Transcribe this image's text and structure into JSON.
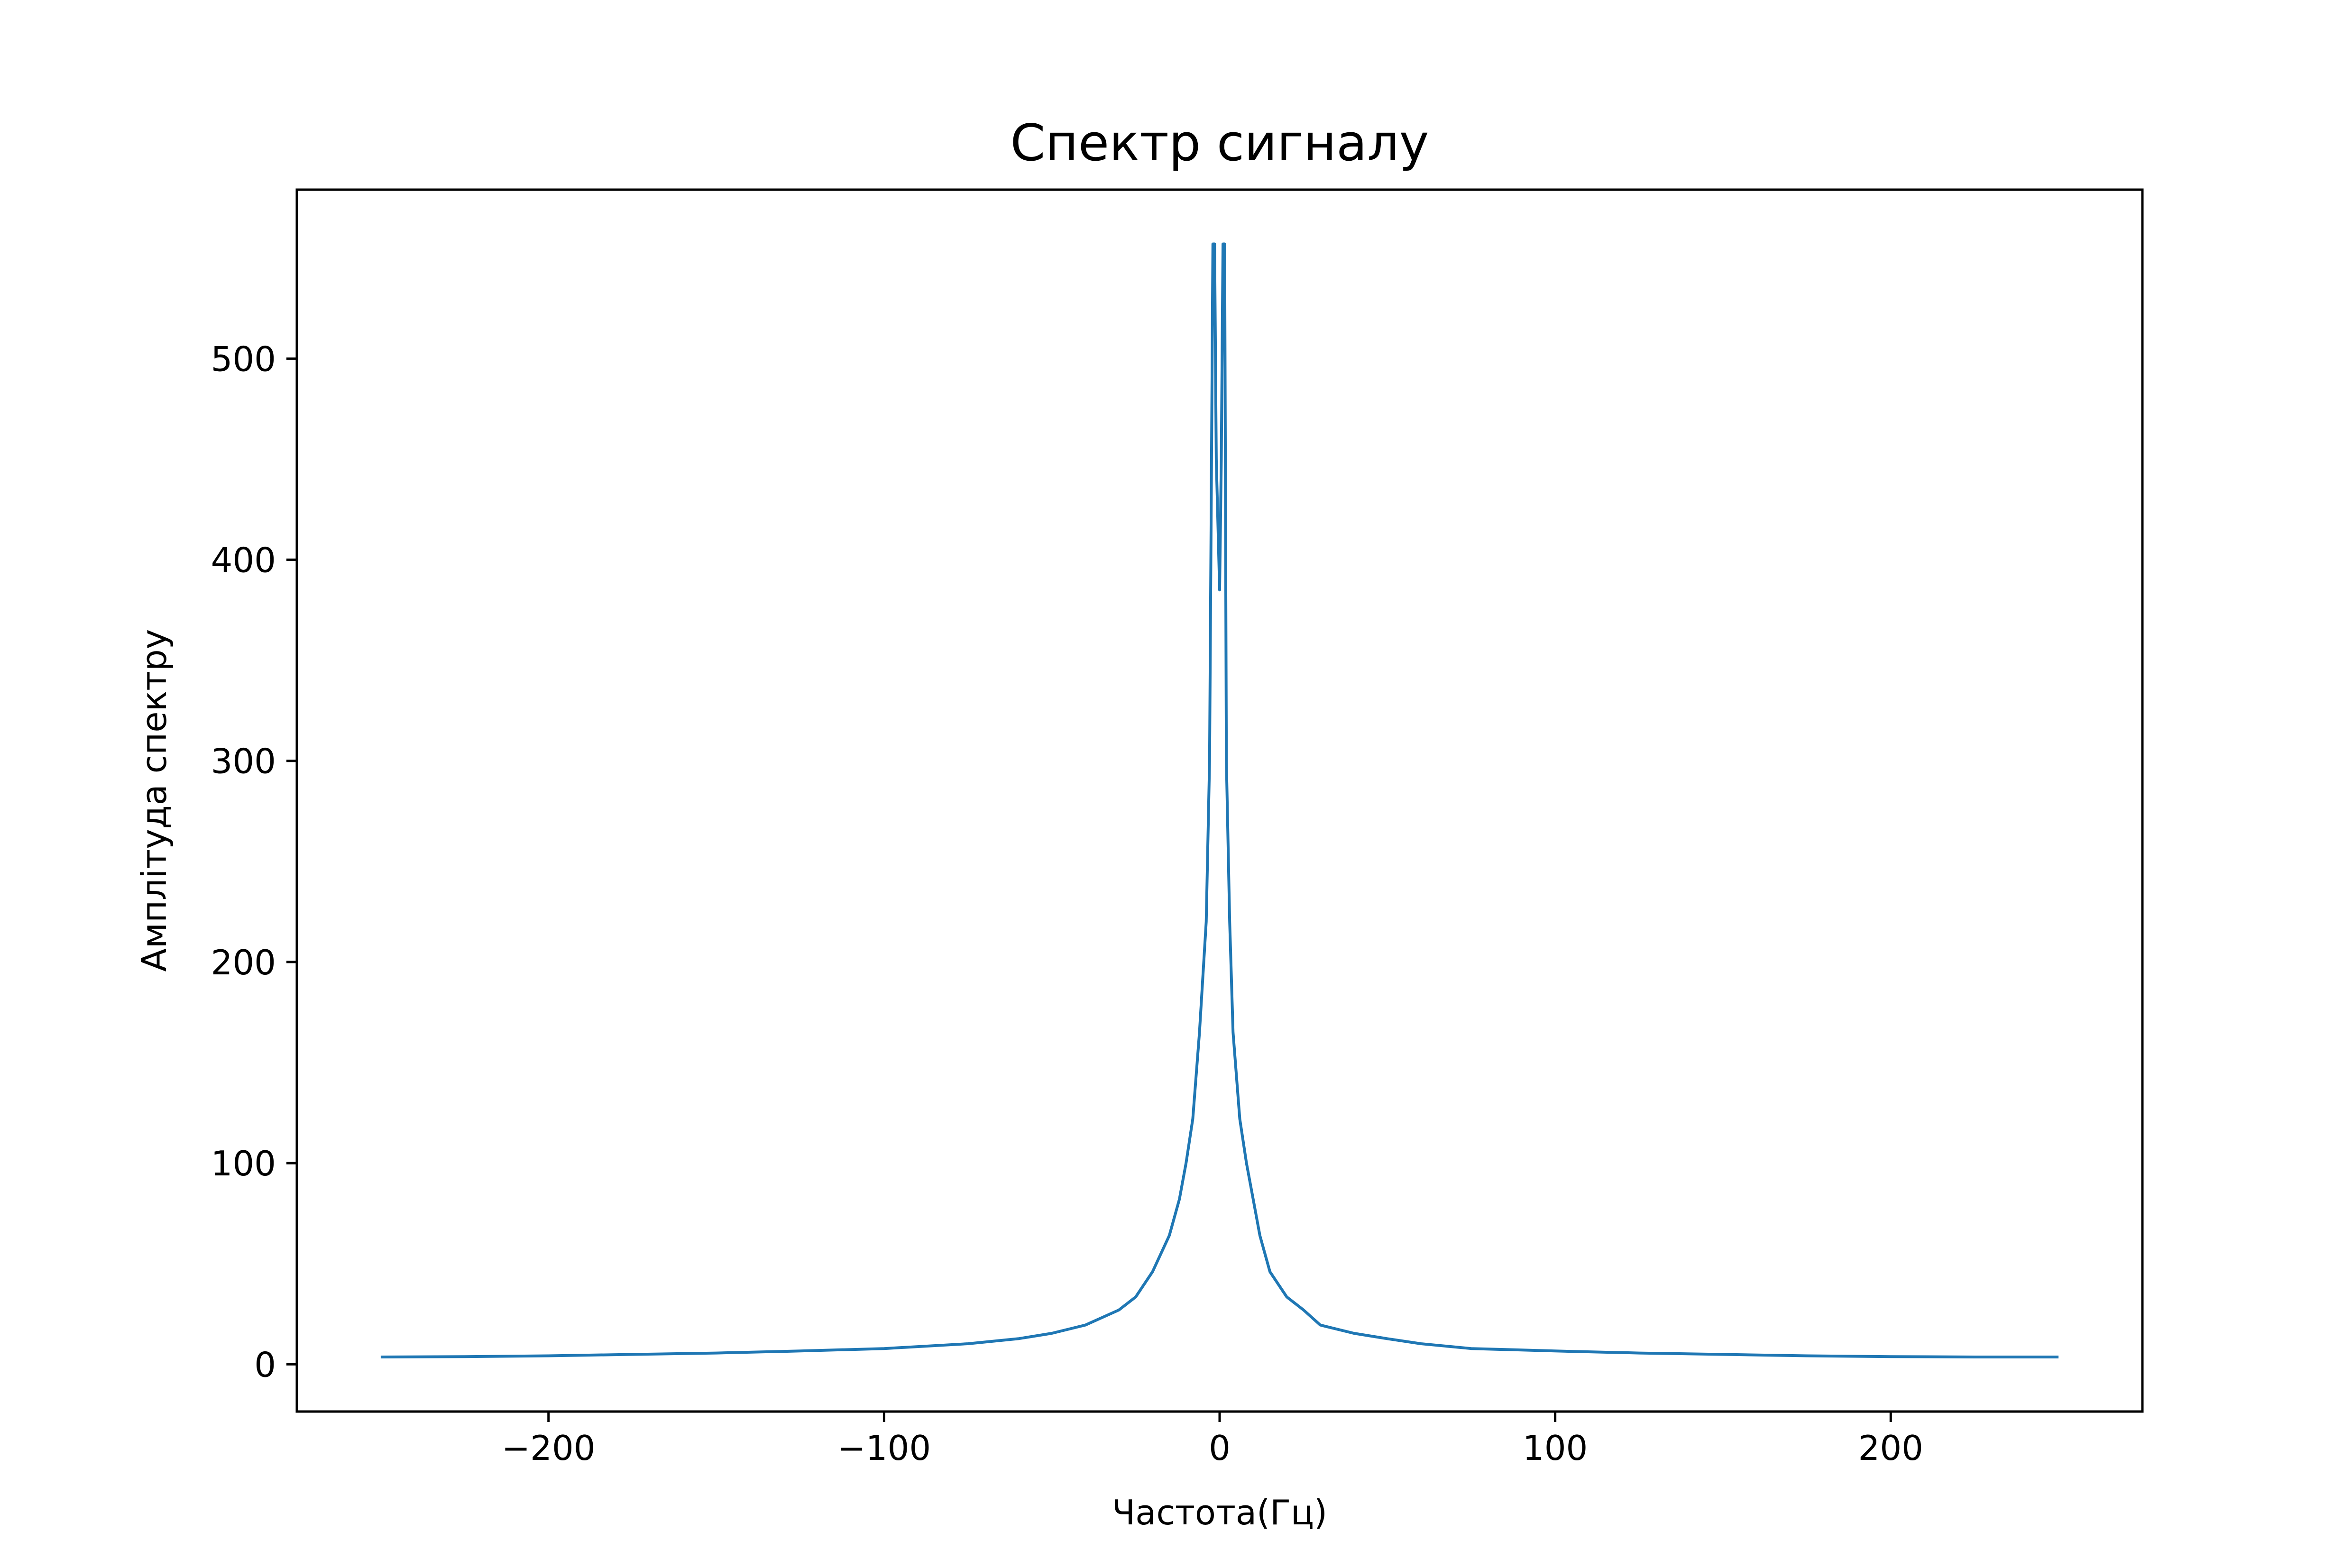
{
  "chart_data": {
    "type": "line",
    "title": "Спектр сигналу",
    "xlabel": "Частота(Гц)",
    "ylabel": "Амплітуда спектру",
    "xlim": [
      -275,
      275
    ],
    "ylim": [
      -23.5,
      584
    ],
    "x_ticks": [
      -200,
      -100,
      0,
      100,
      200
    ],
    "x_tick_labels": [
      "−200",
      "−100",
      "0",
      "100",
      "200"
    ],
    "y_ticks": [
      0,
      100,
      200,
      300,
      400,
      500
    ],
    "y_tick_labels": [
      "0",
      "100",
      "200",
      "300",
      "400",
      "500"
    ],
    "grid": false,
    "legend": "none",
    "series": [
      {
        "color": "#1f77b4",
        "x": [
          -250,
          -225,
          -200,
          -175,
          -150,
          -125,
          -100,
          -75,
          -60,
          -50,
          -40,
          -30,
          -25,
          -20,
          -15,
          -12,
          -10,
          -8,
          -6,
          -4,
          -3,
          -2,
          -1.5,
          -1,
          0,
          0.5,
          1,
          1.5,
          2,
          3,
          4,
          6,
          8,
          10,
          12,
          15,
          20,
          25,
          30,
          40,
          50,
          60,
          75,
          100,
          125,
          150,
          175,
          200,
          225,
          250
        ],
        "values": [
          3.6,
          3.8,
          4.2,
          4.9,
          5.6,
          6.6,
          7.8,
          10.2,
          12.7,
          15.4,
          19.5,
          27,
          33.5,
          46,
          64,
          82,
          100,
          122,
          165,
          220,
          300,
          557,
          557,
          450,
          385,
          450,
          557,
          557,
          300,
          220,
          165,
          122,
          100,
          82,
          64,
          46,
          33.5,
          27,
          19.5,
          15.4,
          12.7,
          10.2,
          7.8,
          6.6,
          5.6,
          4.9,
          4.2,
          3.8,
          3.6,
          3.6
        ]
      }
    ]
  }
}
